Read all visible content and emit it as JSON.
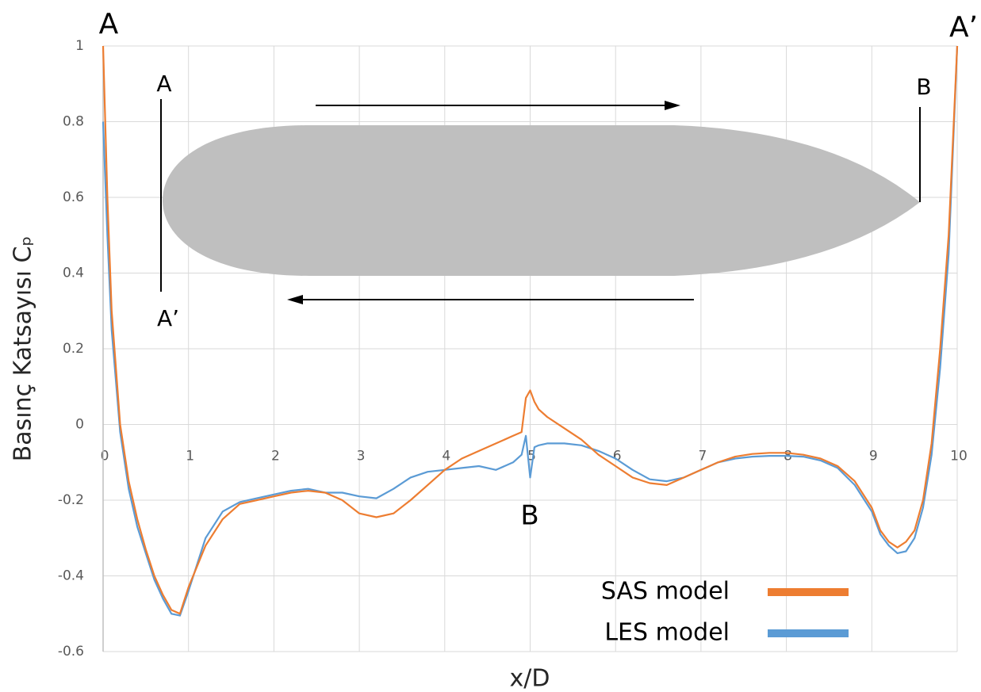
{
  "chart_data": {
    "type": "line",
    "xlabel": "x/D",
    "ylabel": "Basınç Katsayısı Cₚ",
    "x": [
      0,
      0.05,
      0.1,
      0.2,
      0.3,
      0.4,
      0.5,
      0.6,
      0.7,
      0.8,
      0.9,
      1.0,
      1.2,
      1.4,
      1.6,
      1.8,
      2.0,
      2.2,
      2.4,
      2.6,
      2.8,
      3.0,
      3.2,
      3.4,
      3.6,
      3.8,
      4.0,
      4.2,
      4.4,
      4.6,
      4.8,
      4.9,
      4.95,
      5.0,
      5.05,
      5.1,
      5.2,
      5.4,
      5.6,
      5.8,
      6.0,
      6.2,
      6.4,
      6.6,
      6.8,
      7.0,
      7.2,
      7.4,
      7.6,
      7.8,
      8.0,
      8.2,
      8.4,
      8.6,
      8.8,
      9.0,
      9.1,
      9.2,
      9.3,
      9.4,
      9.5,
      9.6,
      9.7,
      9.8,
      9.9,
      10.0
    ],
    "series": [
      {
        "name": "SAS model",
        "color": "#ed7d31",
        "values": [
          1.0,
          0.6,
          0.3,
          0.0,
          -0.15,
          -0.25,
          -0.33,
          -0.4,
          -0.45,
          -0.49,
          -0.5,
          -0.43,
          -0.32,
          -0.25,
          -0.21,
          -0.2,
          -0.19,
          -0.18,
          -0.175,
          -0.18,
          -0.2,
          -0.235,
          -0.245,
          -0.235,
          -0.2,
          -0.16,
          -0.12,
          -0.09,
          -0.07,
          -0.05,
          -0.03,
          -0.02,
          0.07,
          0.09,
          0.06,
          0.04,
          0.02,
          -0.01,
          -0.04,
          -0.08,
          -0.11,
          -0.14,
          -0.155,
          -0.16,
          -0.14,
          -0.12,
          -0.1,
          -0.085,
          -0.078,
          -0.075,
          -0.075,
          -0.08,
          -0.09,
          -0.11,
          -0.15,
          -0.22,
          -0.28,
          -0.31,
          -0.325,
          -0.31,
          -0.28,
          -0.2,
          -0.05,
          0.2,
          0.5,
          1.0
        ]
      },
      {
        "name": "LES model",
        "color": "#5b9bd5",
        "values": [
          0.8,
          0.5,
          0.25,
          -0.02,
          -0.17,
          -0.27,
          -0.34,
          -0.41,
          -0.46,
          -0.5,
          -0.505,
          -0.44,
          -0.3,
          -0.23,
          -0.205,
          -0.195,
          -0.185,
          -0.175,
          -0.17,
          -0.18,
          -0.18,
          -0.19,
          -0.195,
          -0.17,
          -0.14,
          -0.125,
          -0.12,
          -0.115,
          -0.11,
          -0.12,
          -0.1,
          -0.08,
          -0.03,
          -0.14,
          -0.06,
          -0.055,
          -0.05,
          -0.05,
          -0.055,
          -0.07,
          -0.09,
          -0.12,
          -0.145,
          -0.15,
          -0.14,
          -0.12,
          -0.1,
          -0.09,
          -0.085,
          -0.083,
          -0.083,
          -0.085,
          -0.095,
          -0.115,
          -0.16,
          -0.23,
          -0.29,
          -0.32,
          -0.34,
          -0.335,
          -0.3,
          -0.22,
          -0.08,
          0.15,
          0.45,
          1.0
        ]
      }
    ],
    "xlim": [
      0,
      10
    ],
    "xticks": [
      0,
      1,
      2,
      3,
      4,
      5,
      6,
      7,
      8,
      9,
      10
    ],
    "ylim": [
      -0.6,
      1
    ],
    "yticks": [
      -0.6,
      -0.4,
      -0.2,
      0,
      0.2,
      0.4,
      0.6,
      0.8,
      1
    ],
    "grid": true,
    "legend": "lower right",
    "annotations": [
      "A",
      "A’",
      "A",
      "A’",
      "B",
      "B"
    ]
  }
}
